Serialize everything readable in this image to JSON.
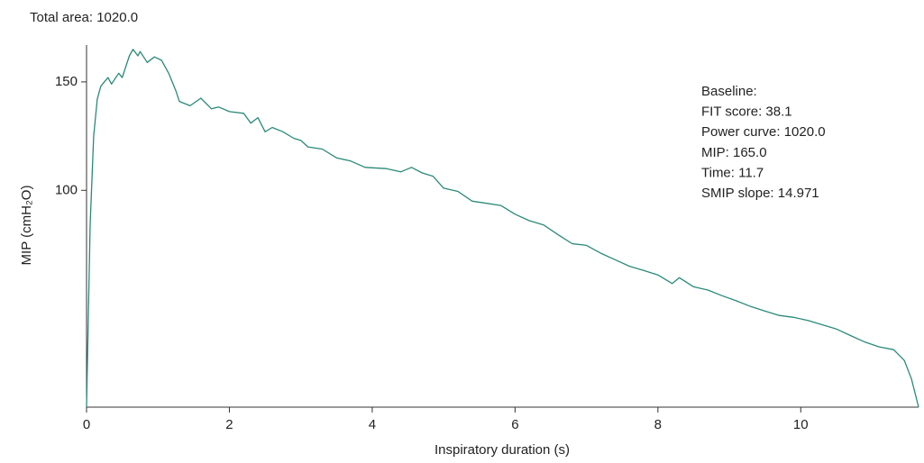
{
  "chart_data": {
    "type": "line",
    "title": "Total area: 1020.0",
    "xlabel": "Inspiratory duration (s)",
    "ylabel": "MIP (cmH₂O)",
    "annotation": [
      "Baseline:",
      "FIT score: 38.1",
      "Power curve: 1020.0",
      "MIP: 165.0",
      "Time: 11.7",
      "SMIP slope: 14.971"
    ],
    "color": "#2a8a78",
    "x": [
      0,
      0.05,
      0.1,
      0.15,
      0.2,
      0.3,
      0.35,
      0.45,
      0.5,
      0.6,
      0.65,
      0.72,
      0.75,
      0.85,
      0.95,
      1.05,
      1.15,
      1.25,
      1.3,
      1.45,
      1.6,
      1.75,
      1.85,
      2.0,
      2.2,
      2.3,
      2.4,
      2.5,
      2.6,
      2.75,
      2.9,
      3.0,
      3.1,
      3.3,
      3.5,
      3.7,
      3.9,
      4.2,
      4.4,
      4.55,
      4.7,
      4.85,
      5.0,
      5.2,
      5.4,
      5.6,
      5.8,
      6.0,
      6.2,
      6.4,
      6.6,
      6.8,
      7.0,
      7.2,
      7.4,
      7.6,
      7.8,
      8.0,
      8.2,
      8.3,
      8.5,
      8.7,
      8.9,
      9.1,
      9.3,
      9.5,
      9.7,
      9.9,
      10.1,
      10.3,
      10.5,
      10.7,
      10.9,
      11.1,
      11.3,
      11.45,
      11.55,
      11.65
    ],
    "values": [
      0,
      84,
      125,
      142,
      148,
      152,
      149,
      154,
      152,
      162,
      165,
      162,
      164,
      159,
      161.5,
      160,
      154,
      146,
      141,
      139,
      142.5,
      137.6,
      138.4,
      136.3,
      135.5,
      131,
      133.5,
      127,
      129,
      127,
      124,
      123,
      120,
      119,
      115,
      113.5,
      110.6,
      110,
      108.5,
      110.6,
      108,
      106.5,
      101,
      99.5,
      95,
      94,
      93,
      89,
      86,
      84,
      79.6,
      75.4,
      74.6,
      71,
      68,
      65,
      63,
      61,
      57,
      59.7,
      55.5,
      54,
      51.4,
      49,
      46.4,
      44.3,
      42.3,
      41.4,
      40,
      38,
      36,
      33,
      30,
      27.8,
      26.5,
      21.5,
      13,
      0
    ],
    "xlim": [
      0,
      11.65
    ],
    "ylim": [
      0,
      167
    ],
    "xticks": [
      0,
      2,
      4,
      6,
      8,
      10
    ],
    "yticks": [
      100,
      150
    ]
  }
}
